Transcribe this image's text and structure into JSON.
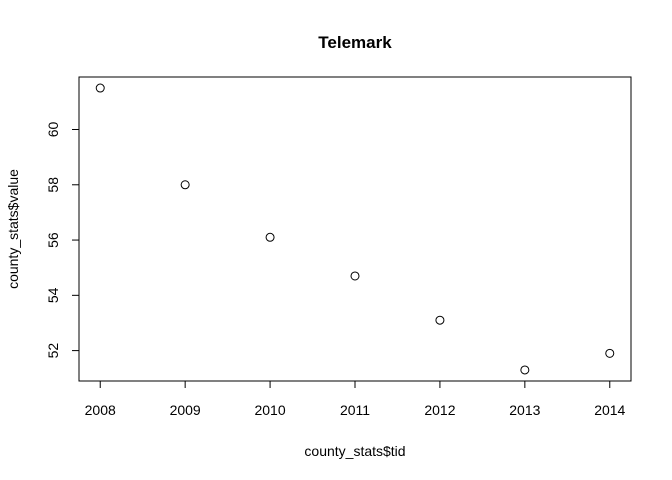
{
  "chart_data": {
    "type": "scatter",
    "title": "Telemark",
    "xlabel": "county_stats$tid",
    "ylabel": "county_stats$value",
    "x": [
      2008,
      2009,
      2010,
      2011,
      2012,
      2013,
      2014
    ],
    "y": [
      61.5,
      58.0,
      56.1,
      54.7,
      53.1,
      51.3,
      51.9
    ],
    "xlim": [
      2007.75,
      2014.25
    ],
    "ylim": [
      50.9,
      61.9
    ],
    "xticks": [
      2008,
      2009,
      2010,
      2011,
      2012,
      2013,
      2014
    ],
    "yticks": [
      52,
      54,
      56,
      58,
      60
    ],
    "grid": false,
    "marker": "open-circle"
  }
}
